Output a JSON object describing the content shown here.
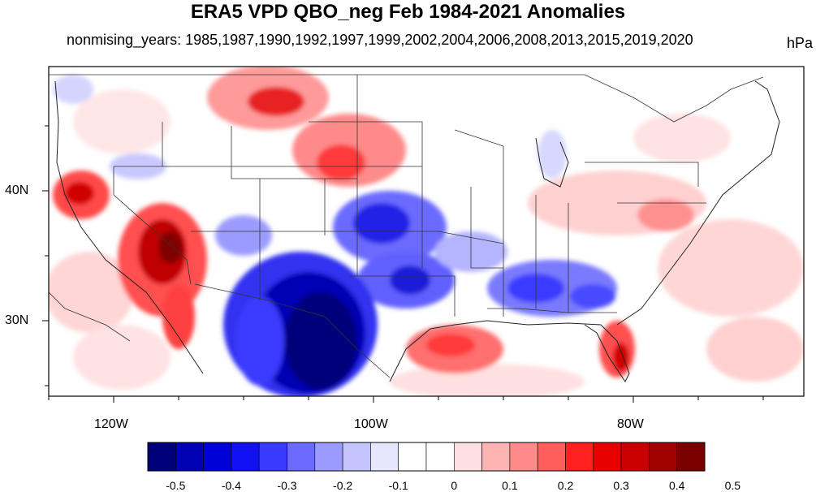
{
  "title": "ERA5 VPD QBO_neg Feb 1984-2021 Anomalies",
  "subtitle": "nonmising_years: 1985,1987,1990,1992,1997,1999,2002,2004,2006,2008,2013,2015,2019,2020",
  "units": "hPa",
  "axes": {
    "lat_labels": [
      "40N",
      "30N"
    ],
    "lon_labels": [
      "120W",
      "100W",
      "80W"
    ]
  },
  "colorbar": {
    "labels": [
      "-0.5",
      "-0.4",
      "-0.3",
      "-0.2",
      "-0.1",
      "0",
      "0.1",
      "0.2",
      "0.3",
      "0.4",
      "0.5"
    ],
    "colors": [
      "#00007a",
      "#0000b4",
      "#0000d8",
      "#1010f0",
      "#3a3aff",
      "#6a6aff",
      "#9b9bff",
      "#c4c4ff",
      "#e6e6ff",
      "#ffffff",
      "#ffffff",
      "#ffe0e0",
      "#ffb4b4",
      "#ff8a8a",
      "#ff5c5c",
      "#ff2020",
      "#e80000",
      "#c80000",
      "#a00000",
      "#7a0000"
    ]
  },
  "palette": {
    "dark_blue": "#00007a",
    "blue": "#2020e6",
    "light_blue": "#9b9bff",
    "pale_red": "#ffd0d0",
    "red": "#ff3030",
    "dark_red": "#a00000"
  }
}
